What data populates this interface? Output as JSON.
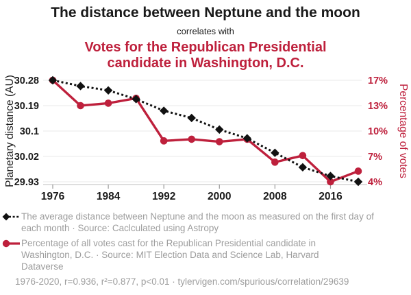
{
  "header": {
    "title": "The distance between Neptune and the moon",
    "subtitle": "correlates with",
    "title2": "Votes for the Republican Presidential candidate in Washington, D.C."
  },
  "colors": {
    "red": "#be203c",
    "black": "#111111",
    "legend_gray": "#9d9d9d",
    "gridline": "#e9e9e9",
    "axis_line": "#c9c9c9",
    "tick_mark": "#999999",
    "title_black": "#1a1a1a"
  },
  "chart_data": {
    "type": "line",
    "x": [
      1976,
      1980,
      1984,
      1988,
      1992,
      1996,
      2000,
      2004,
      2008,
      2012,
      2016,
      2020
    ],
    "x_ticks": [
      "1976",
      "1984",
      "1992",
      "2000",
      "2008",
      "2016"
    ],
    "series": [
      {
        "name": "neptune_distance",
        "label": "The average distance between Neptune and the moon",
        "axis": "left",
        "color": "#111111",
        "marker": "diamond",
        "line_style": "dotted",
        "values": [
          30.28,
          30.26,
          30.245,
          30.215,
          30.175,
          30.15,
          30.11,
          30.08,
          30.03,
          29.98,
          29.95,
          29.93
        ]
      },
      {
        "name": "republican_votes_pct",
        "label": "Percentage of all votes cast for the Republican Presidential candidate in Washington, D.C.",
        "axis": "right",
        "color": "#be203c",
        "marker": "circle",
        "line_style": "solid",
        "values": [
          16.5,
          13.4,
          13.7,
          14.3,
          9.1,
          9.3,
          9.0,
          9.3,
          6.5,
          7.3,
          4.1,
          5.4
        ]
      }
    ],
    "left_axis": {
      "label": "Planetary distance (AU)",
      "ticks": [
        "30.28",
        "30.19",
        "30.1",
        "30.02",
        "29.93"
      ]
    },
    "right_axis": {
      "label": "Percentage of votes",
      "ticks": [
        "17%",
        "13%",
        "10%",
        "7%",
        "4%"
      ]
    },
    "grid": "horizontal-only",
    "legend_position": "bottom"
  },
  "legend": [
    {
      "series": "neptune_distance",
      "text": "The average distance between Neptune and the moon as measured on the first day of\neach month · Source: Caclculated using Astropy"
    },
    {
      "series": "republican_votes_pct",
      "text": "Percentage of all votes cast for the Republican Presidential candidate in\nWashington, D.C. · Source: MIT Election Data and Science Lab, Harvard\nDataverse"
    }
  ],
  "footer": "1976-2020, r=0.936, r²=0.877, p<0.01 · tylervigen.com/spurious/correlation/29639"
}
